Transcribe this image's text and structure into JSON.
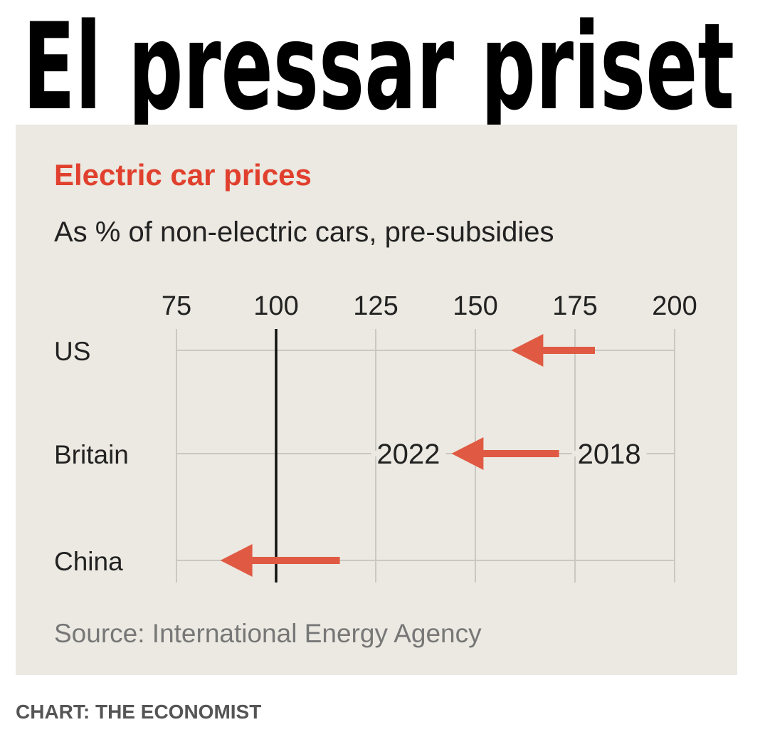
{
  "header": {
    "title": "El pressar priset"
  },
  "chart_data": {
    "type": "arrow",
    "title": "Electric car prices",
    "subtitle": "As % of non-electric cars, pre-subsidies",
    "categories": [
      "US",
      "Britain",
      "China"
    ],
    "series": [
      {
        "name": "2018",
        "values": [
          180,
          171,
          116
        ]
      },
      {
        "name": "2022",
        "values": [
          159,
          144,
          86
        ]
      }
    ],
    "color": "#e05a43",
    "xlim": [
      75,
      200
    ],
    "xticks": [
      75,
      100,
      125,
      150,
      175,
      200
    ],
    "reference_line": 100,
    "grid": true,
    "source": "Source: International Energy Agency"
  },
  "footer": {
    "credit": "CHART: THE ECONOMIST"
  }
}
